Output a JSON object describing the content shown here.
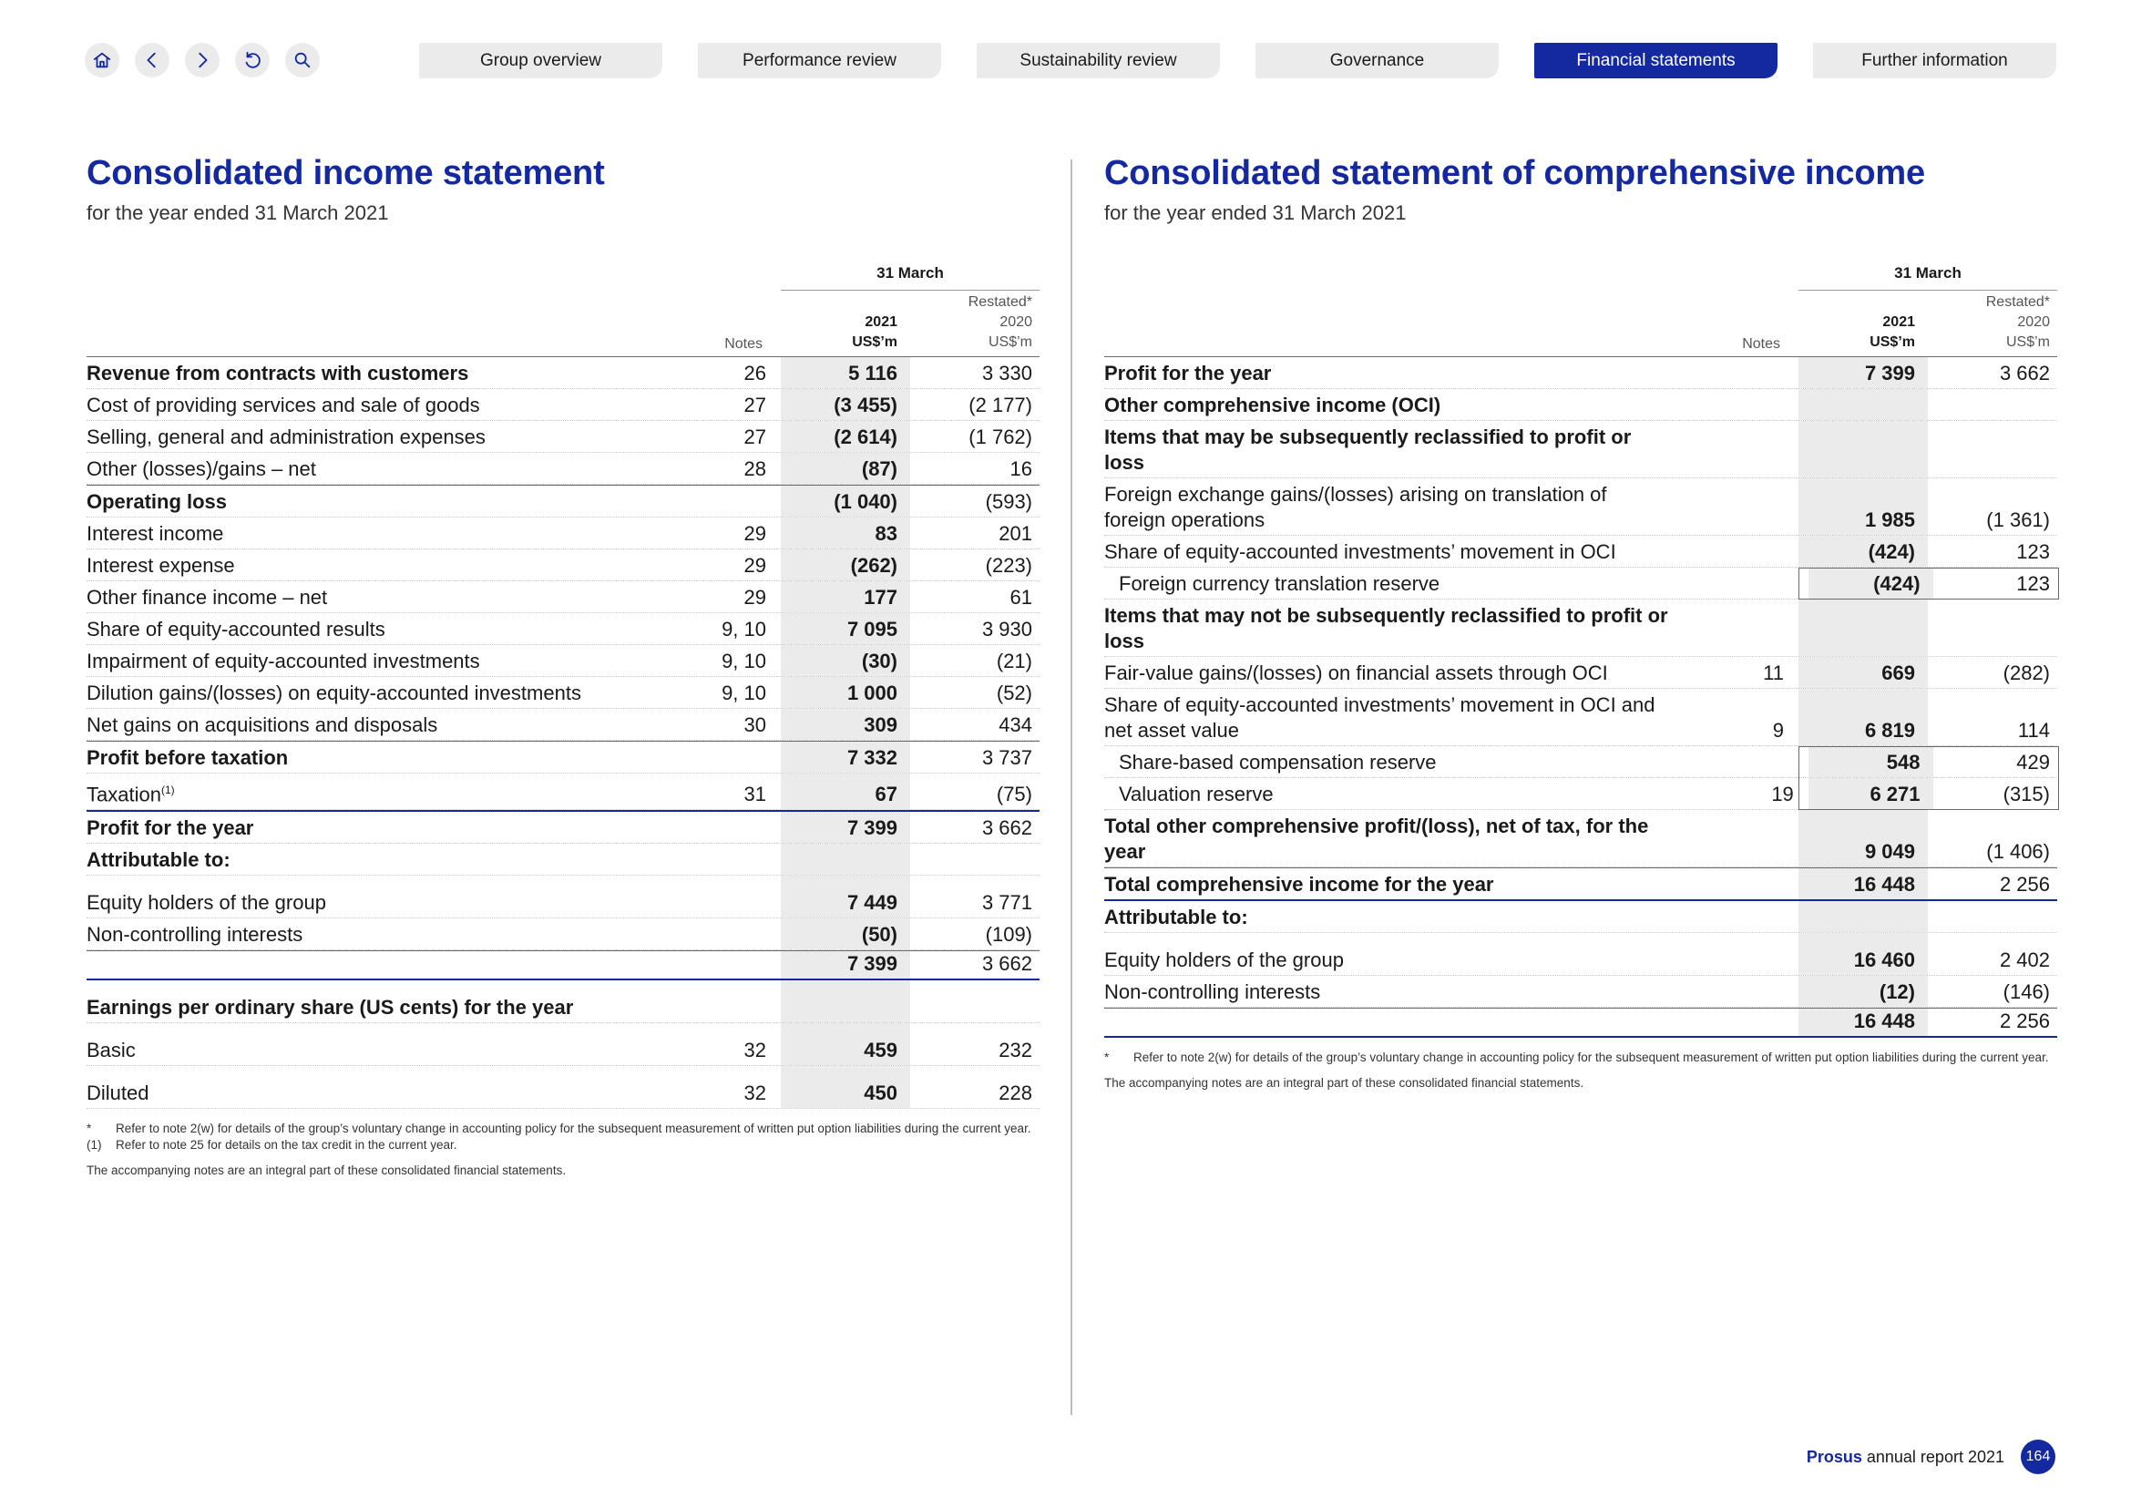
{
  "nav": {
    "icons": [
      "home-icon",
      "chevron-left-icon",
      "chevron-right-icon",
      "undo-icon",
      "search-icon"
    ],
    "tabs": [
      {
        "label": "Group overview",
        "active": false
      },
      {
        "label": "Performance review",
        "active": false
      },
      {
        "label": "Sustainability review",
        "active": false
      },
      {
        "label": "Governance",
        "active": false
      },
      {
        "label": "Financial statements",
        "active": true
      },
      {
        "label": "Further information",
        "active": false
      }
    ]
  },
  "colors": {
    "accent": "#1428a0",
    "shade": "#ebebeb"
  },
  "income": {
    "title": "Consolidated income statement",
    "subtitle": "for the year ended 31 March 2021",
    "span_header": "31 March",
    "col_notes": "Notes",
    "col_cur": [
      "2021",
      "US$’m"
    ],
    "col_prev": [
      "Restated*",
      "2020",
      "US$’m"
    ],
    "rows": [
      {
        "label": "Revenue from contracts with customers",
        "notes": "26",
        "cur": "5 116",
        "prev": "3 330",
        "bold": true
      },
      {
        "label": "Cost of providing services and sale of goods",
        "notes": "27",
        "cur": "(3 455)",
        "prev": "(2 177)"
      },
      {
        "label": "Selling, general and administration expenses",
        "notes": "27",
        "cur": "(2 614)",
        "prev": "(1 762)"
      },
      {
        "label": "Other (losses)/gains – net",
        "notes": "28",
        "cur": "(87)",
        "prev": "16"
      },
      {
        "label": "Operating loss",
        "notes": "",
        "cur": "(1 040)",
        "prev": "(593)",
        "bold": true,
        "topline": true
      },
      {
        "label": "Interest income",
        "notes": "29",
        "cur": "83",
        "prev": "201"
      },
      {
        "label": "Interest expense",
        "notes": "29",
        "cur": "(262)",
        "prev": "(223)"
      },
      {
        "label": "Other finance income – net",
        "notes": "29",
        "cur": "177",
        "prev": "61"
      },
      {
        "label": "Share of equity-accounted results",
        "notes": "9, 10",
        "cur": "7 095",
        "prev": "3 930"
      },
      {
        "label": "Impairment of equity-accounted investments",
        "notes": "9, 10",
        "cur": "(30)",
        "prev": "(21)"
      },
      {
        "label": "Dilution gains/(losses) on equity-accounted investments",
        "notes": "9, 10",
        "cur": "1 000",
        "prev": "(52)"
      },
      {
        "label": "Net gains on acquisitions and disposals",
        "notes": "30",
        "cur": "309",
        "prev": "434"
      },
      {
        "label": "Profit before taxation",
        "notes": "",
        "cur": "7 332",
        "prev": "3 737",
        "bold": true,
        "topline": true
      },
      {
        "label": "Taxation",
        "sup": "(1)",
        "notes": "31",
        "cur": "67",
        "prev": "(75)"
      },
      {
        "label": "Profit for the year",
        "notes": "",
        "cur": "7 399",
        "prev": "3 662",
        "bold": true,
        "blueline": true
      },
      {
        "label": "Attributable to:",
        "notes": "",
        "cur": "",
        "prev": "",
        "bold": true
      },
      {
        "label": "Equity holders of the group",
        "notes": "",
        "cur": "7 449",
        "prev": "3 771",
        "tall": true
      },
      {
        "label": "Non-controlling interests",
        "notes": "",
        "cur": "(50)",
        "prev": "(109)"
      },
      {
        "label": "",
        "notes": "",
        "cur": "7 399",
        "prev": "3 662",
        "topline": true,
        "blueunder": true
      },
      {
        "label": "Earnings per ordinary share (US cents) for the year",
        "notes": "",
        "cur": "",
        "prev": "",
        "bold": true,
        "tall": true
      },
      {
        "label": "Basic",
        "notes": "32",
        "cur": "459",
        "prev": "232",
        "tall": true
      },
      {
        "label": "Diluted",
        "notes": "32",
        "cur": "450",
        "prev": "228",
        "tall": true
      }
    ],
    "footnotes": [
      {
        "mark": "*",
        "text": "Refer to note 2(w) for details of the group’s voluntary change in accounting policy for the subsequent measurement of written put option liabilities during the current year."
      },
      {
        "mark": "(1)",
        "text": "Refer to note 25 for details on the tax credit in the current year."
      }
    ],
    "note": "The accompanying notes are an integral part of these consolidated financial statements."
  },
  "comprehensive": {
    "title": "Consolidated statement of comprehensive income",
    "subtitle": "for the year ended 31 March 2021",
    "span_header": "31 March",
    "col_notes": "Notes",
    "col_cur": [
      "2021",
      "US$’m"
    ],
    "col_prev": [
      "Restated*",
      "2020",
      "US$’m"
    ],
    "rows": [
      {
        "label": "Profit for the year",
        "notes": "",
        "cur": "7 399",
        "prev": "3 662",
        "bold": true
      },
      {
        "label": "Other comprehensive income (OCI)",
        "notes": "",
        "cur": "",
        "prev": "",
        "bold": true
      },
      {
        "label": "Items that may be subsequently reclassified to profit or loss",
        "notes": "",
        "cur": "",
        "prev": "",
        "bold": true
      },
      {
        "label": "Foreign exchange gains/(losses) arising on translation of foreign operations",
        "notes": "",
        "cur": "1 985",
        "prev": "(1 361)"
      },
      {
        "label": "Share of equity-accounted investments’ movement in OCI",
        "notes": "",
        "cur": "(424)",
        "prev": "123"
      },
      {
        "label": "Foreign currency translation reserve",
        "notes": "",
        "cur": "(424)",
        "prev": "123",
        "indent": true,
        "boxed": true
      },
      {
        "label": "Items that may not be subsequently reclassified to profit or loss",
        "notes": "",
        "cur": "",
        "prev": "",
        "bold": true
      },
      {
        "label": "Fair-value gains/(losses) on financial assets through OCI",
        "notes": "11",
        "cur": "669",
        "prev": "(282)"
      },
      {
        "label": "Share of equity-accounted investments’ movement in OCI and net asset value",
        "notes": "9",
        "cur": "6 819",
        "prev": "114"
      },
      {
        "label": "Share-based compensation reserve",
        "notes": "",
        "cur": "548",
        "prev": "429",
        "indent": true,
        "boxed": true
      },
      {
        "label": "Valuation reserve",
        "notes": "19",
        "cur": "6 271",
        "prev": "(315)",
        "indent": true,
        "boxed": true
      },
      {
        "label": "Total other comprehensive profit/(loss), net of tax, for the year",
        "notes": "",
        "cur": "9 049",
        "prev": "(1 406)",
        "bold": true
      },
      {
        "label": "Total comprehensive income for the year",
        "notes": "",
        "cur": "16 448",
        "prev": "2 256",
        "bold": true,
        "topline": true,
        "blueunder": true
      },
      {
        "label": "Attributable to:",
        "notes": "",
        "cur": "",
        "prev": "",
        "bold": true
      },
      {
        "label": "Equity holders of the group",
        "notes": "",
        "cur": "16 460",
        "prev": "2 402",
        "tall": true
      },
      {
        "label": "Non-controlling interests",
        "notes": "",
        "cur": "(12)",
        "prev": "(146)"
      },
      {
        "label": "",
        "notes": "",
        "cur": "16 448",
        "prev": "2 256",
        "topline": true,
        "blueunder": true
      }
    ],
    "footnotes": [
      {
        "mark": "*",
        "text": "Refer to note 2(w) for details of the group’s voluntary change in accounting policy for the subsequent measurement of written put option liabilities during the current year."
      }
    ],
    "note": "The accompanying notes are an integral part of these consolidated financial statements."
  },
  "footer": {
    "brand": "Prosus",
    "text": "annual report 2021",
    "page": "164"
  }
}
